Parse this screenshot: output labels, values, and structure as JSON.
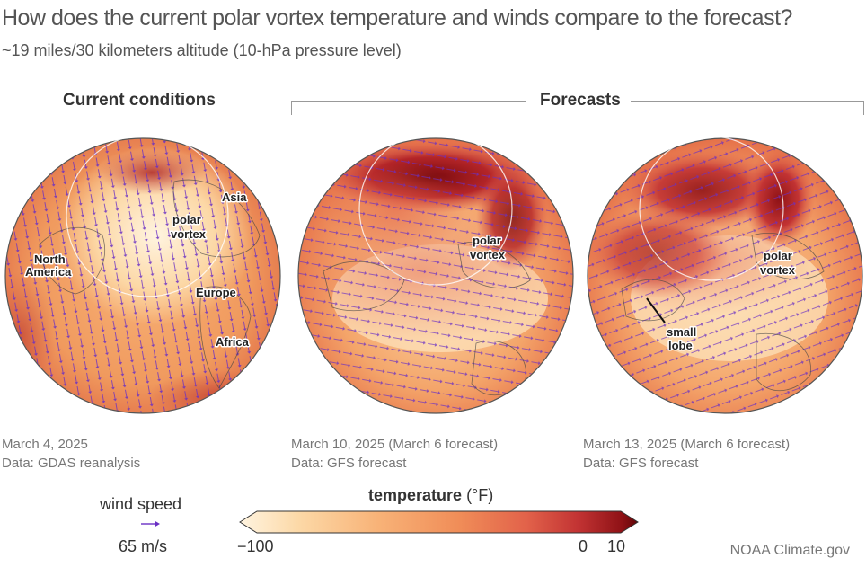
{
  "title": "How does the current polar vortex temperature and winds compare to the forecast?",
  "subtitle": "~19 miles/30 kilometers altitude (10-hPa pressure level)",
  "panels": [
    {
      "heading": "Current conditions",
      "date": "March 4, 2025",
      "source": "Data: GDAS reanalysis",
      "labels": {
        "asia": "Asia",
        "polar": "polar",
        "vortex": "vortex",
        "north": "North",
        "america": "America",
        "europe": "Europe",
        "africa": "Africa"
      }
    },
    {
      "date": "March 10, 2025 (March 6 forecast)",
      "source": "Data: GFS forecast",
      "labels": {
        "polar": "polar",
        "vortex": "vortex"
      }
    },
    {
      "date": "March 13, 2025 (March 6 forecast)",
      "source": "Data: GFS forecast",
      "labels": {
        "polar": "polar",
        "vortex": "vortex",
        "small": "small",
        "lobe": "lobe"
      }
    }
  ],
  "forecasts_heading": "Forecasts",
  "legend": {
    "wind_label": "wind speed",
    "wind_value": "65 m/s",
    "temp_title": "temperature",
    "temp_units": "(°F)",
    "ticks": {
      "min": "−100",
      "mid": "0",
      "max": "10"
    },
    "colors": [
      "#fff4e0",
      "#fcd8a6",
      "#f8b277",
      "#f08d58",
      "#e2624a",
      "#c23333",
      "#8f1216",
      "#5f0508"
    ],
    "arrow_color": "#6a2fc4"
  },
  "credit": "NOAA Climate.gov"
}
